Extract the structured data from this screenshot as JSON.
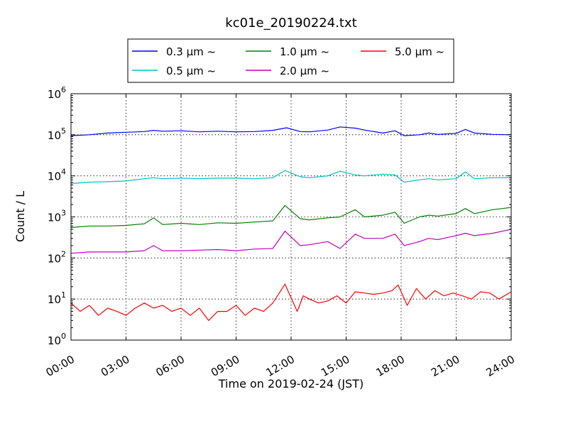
{
  "chart_data": {
    "type": "line",
    "title": "kc01e_20190224.txt",
    "xlabel": "Time on 2019-02-24 (JST)",
    "ylabel": "Count / L",
    "xlim": [
      "00:00",
      "24:00"
    ],
    "x_ticks": [
      "00:00",
      "03:00",
      "06:00",
      "09:00",
      "12:00",
      "15:00",
      "18:00",
      "21:00",
      "24:00"
    ],
    "yscale": "log",
    "ylim": [
      1,
      1000000
    ],
    "y_ticks": [
      {
        "base": "10",
        "exp": "0"
      },
      {
        "base": "10",
        "exp": "1"
      },
      {
        "base": "10",
        "exp": "2"
      },
      {
        "base": "10",
        "exp": "3"
      },
      {
        "base": "10",
        "exp": "4"
      },
      {
        "base": "10",
        "exp": "5"
      },
      {
        "base": "10",
        "exp": "6"
      }
    ],
    "grid": true,
    "legend": "top-center, outside plot",
    "series": [
      {
        "name": "0.3 μm ~",
        "color": "#0000ff",
        "x": [
          "00:00",
          "01:00",
          "02:00",
          "03:00",
          "04:00",
          "04:30",
          "05:00",
          "06:00",
          "07:00",
          "08:00",
          "09:00",
          "10:00",
          "11:00",
          "11:45",
          "12:30",
          "13:00",
          "14:00",
          "14:40",
          "15:30",
          "16:00",
          "17:00",
          "17:40",
          "18:10",
          "19:00",
          "19:30",
          "20:00",
          "21:00",
          "21:30",
          "22:00",
          "23:00",
          "24:00"
        ],
        "values": [
          95000,
          100000,
          110000,
          115000,
          120000,
          128000,
          122000,
          125000,
          118000,
          122000,
          118000,
          120000,
          128000,
          148000,
          120000,
          118000,
          130000,
          155000,
          145000,
          130000,
          110000,
          125000,
          95000,
          100000,
          110000,
          102000,
          108000,
          135000,
          110000,
          102000,
          100000
        ]
      },
      {
        "name": "0.5 μm ~",
        "color": "#00bfbf",
        "x": [
          "00:00",
          "01:00",
          "02:00",
          "03:00",
          "04:00",
          "04:30",
          "05:00",
          "06:00",
          "07:00",
          "08:00",
          "09:00",
          "10:00",
          "11:00",
          "11:40",
          "12:30",
          "13:00",
          "14:00",
          "14:40",
          "15:30",
          "16:00",
          "17:00",
          "17:40",
          "18:10",
          "19:00",
          "19:30",
          "20:00",
          "21:00",
          "21:30",
          "22:00",
          "23:00",
          "24:00"
        ],
        "values": [
          6500,
          7000,
          7200,
          7500,
          8500,
          9000,
          8500,
          8800,
          8500,
          8800,
          8800,
          8500,
          9000,
          13500,
          9500,
          9000,
          10000,
          13000,
          10500,
          10000,
          11000,
          10500,
          7000,
          8000,
          8500,
          8000,
          8500,
          12500,
          8500,
          9000,
          9000
        ]
      },
      {
        "name": "1.0 μm ~",
        "color": "#008000",
        "x": [
          "00:00",
          "01:00",
          "02:00",
          "03:00",
          "04:00",
          "04:30",
          "05:00",
          "06:00",
          "07:00",
          "08:00",
          "09:00",
          "10:00",
          "11:00",
          "11:40",
          "12:30",
          "13:00",
          "14:00",
          "14:40",
          "15:30",
          "16:00",
          "17:00",
          "17:40",
          "18:10",
          "19:00",
          "19:30",
          "20:00",
          "21:00",
          "21:30",
          "22:00",
          "23:00",
          "24:00"
        ],
        "values": [
          550,
          600,
          600,
          620,
          680,
          950,
          650,
          700,
          650,
          720,
          700,
          750,
          800,
          1900,
          900,
          850,
          950,
          1000,
          1500,
          1000,
          1100,
          1300,
          700,
          1000,
          1100,
          1050,
          1200,
          1600,
          1200,
          1500,
          1700
        ]
      },
      {
        "name": "2.0 μm ~",
        "color": "#bf00bf",
        "x": [
          "00:00",
          "01:00",
          "02:00",
          "03:00",
          "04:00",
          "04:30",
          "05:00",
          "06:00",
          "07:00",
          "08:00",
          "09:00",
          "10:00",
          "11:00",
          "11:40",
          "12:30",
          "13:00",
          "14:00",
          "14:40",
          "15:30",
          "16:00",
          "17:00",
          "17:40",
          "18:10",
          "19:00",
          "19:30",
          "20:00",
          "21:00",
          "21:30",
          "22:00",
          "23:00",
          "24:00"
        ],
        "values": [
          130,
          140,
          140,
          140,
          150,
          200,
          150,
          150,
          155,
          160,
          150,
          165,
          170,
          450,
          200,
          210,
          250,
          170,
          380,
          300,
          300,
          380,
          200,
          250,
          300,
          280,
          350,
          400,
          350,
          400,
          500
        ]
      },
      {
        "name": "5.0 μm ~",
        "color": "#ff0000",
        "x": [
          "00:00",
          "00:30",
          "01:00",
          "01:30",
          "02:00",
          "02:30",
          "03:00",
          "03:30",
          "04:00",
          "04:30",
          "05:00",
          "05:30",
          "06:00",
          "06:30",
          "07:00",
          "07:30",
          "08:00",
          "08:30",
          "09:00",
          "09:30",
          "10:00",
          "10:30",
          "11:00",
          "11:40",
          "12:20",
          "12:40",
          "13:00",
          "13:30",
          "14:00",
          "14:30",
          "15:00",
          "15:30",
          "16:00",
          "16:30",
          "17:00",
          "17:30",
          "17:50",
          "18:20",
          "18:50",
          "19:20",
          "19:50",
          "20:20",
          "20:50",
          "21:20",
          "21:50",
          "22:20",
          "22:50",
          "23:20",
          "24:00"
        ],
        "values": [
          8,
          5,
          7,
          4,
          6,
          5,
          4,
          6,
          8,
          6,
          7,
          5,
          6,
          4,
          6,
          3,
          5,
          5,
          7,
          4,
          6,
          5,
          8,
          23,
          5,
          12,
          10,
          8,
          9,
          12,
          8,
          15,
          14,
          13,
          14,
          16,
          22,
          7,
          18,
          10,
          16,
          12,
          14,
          12,
          10,
          15,
          14,
          10,
          15
        ]
      }
    ]
  }
}
